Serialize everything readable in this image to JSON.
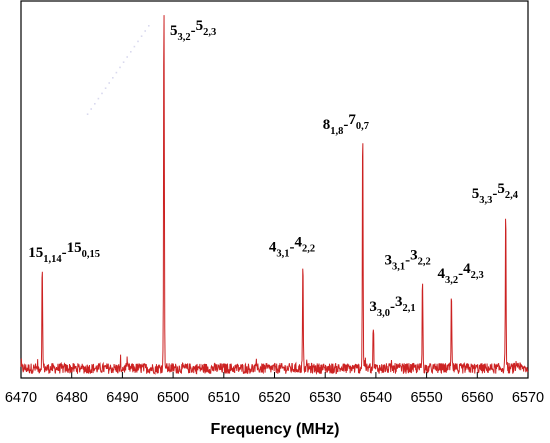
{
  "chart_data": {
    "type": "line",
    "title": "",
    "xlabel": "Frequency (MHz)",
    "ylabel": "",
    "xlim": [
      6470,
      6570
    ],
    "ylim": [
      0,
      1
    ],
    "grid": false,
    "line_color": "#cc2222",
    "x_ticks": [
      "6470",
      "6480",
      "6490",
      "6500",
      "6510",
      "6520",
      "6530",
      "6540",
      "6550",
      "6560",
      "6570"
    ],
    "peaks": [
      {
        "x": 6474.2,
        "y": 0.26,
        "label": {
          "a": "15",
          "a_sub": "1,14",
          "b": "15",
          "b_sub": "0,15"
        }
      },
      {
        "x": 6498.2,
        "y": 1.0,
        "label": {
          "a": "5",
          "a_sub": "3,2",
          "b": "5",
          "b_sub": "2,3"
        }
      },
      {
        "x": 6525.6,
        "y": 0.27,
        "label": {
          "a": "4",
          "a_sub": "3,1",
          "b": "4",
          "b_sub": "2,2"
        }
      },
      {
        "x": 6537.4,
        "y": 0.63,
        "label": {
          "a": "8",
          "a_sub": "1,8",
          "b": "7",
          "b_sub": "0,7"
        }
      },
      {
        "x": 6539.5,
        "y": 0.12,
        "label": {
          "a": "3",
          "a_sub": "3,0",
          "b": "3",
          "b_sub": "2,1"
        }
      },
      {
        "x": 6549.2,
        "y": 0.24,
        "label": {
          "a": "3",
          "a_sub": "3,1",
          "b": "3",
          "b_sub": "2,2"
        }
      },
      {
        "x": 6554.9,
        "y": 0.19,
        "label": {
          "a": "4",
          "a_sub": "3,2",
          "b": "4",
          "b_sub": "2,3"
        }
      },
      {
        "x": 6565.6,
        "y": 0.42,
        "label": {
          "a": "5",
          "a_sub": "3,3",
          "b": "5",
          "b_sub": "2,4"
        }
      }
    ],
    "noise_level": 0.03
  }
}
